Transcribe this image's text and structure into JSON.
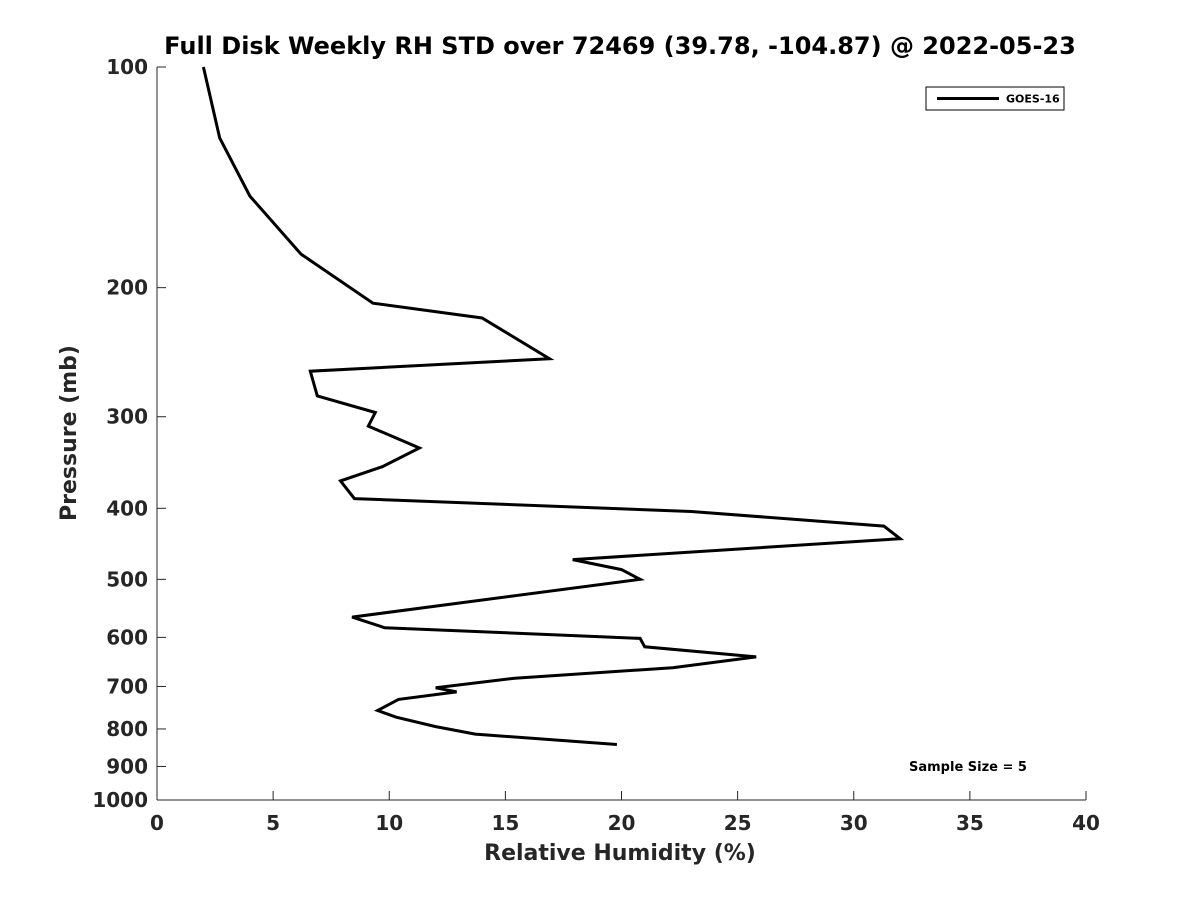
{
  "chart_data": {
    "type": "line",
    "title": "Full Disk Weekly RH STD over 72469 (39.78, -104.87) @ 2022-05-23",
    "xlabel": "Relative Humidity (%)",
    "ylabel": "Pressure (mb)",
    "xlim": [
      0,
      40
    ],
    "ylim": [
      100,
      1000
    ],
    "y_scale": "log",
    "y_reversed": true,
    "x_ticks": [
      "0",
      "5",
      "10",
      "15",
      "20",
      "25",
      "30",
      "35",
      "40"
    ],
    "y_ticks": [
      "100",
      "200",
      "300",
      "400",
      "500",
      "600",
      "700",
      "800",
      "900",
      "1000"
    ],
    "legend": {
      "position": "top-right",
      "entries": [
        "GOES-16"
      ]
    },
    "annotation": "Sample Size = 5",
    "series": [
      {
        "name": "GOES-16",
        "color": "#000000",
        "points": [
          [
            2.0,
            100
          ],
          [
            2.7,
            125
          ],
          [
            4.0,
            150
          ],
          [
            6.2,
            180
          ],
          [
            9.3,
            210
          ],
          [
            14.0,
            220
          ],
          [
            16.9,
            250
          ],
          [
            6.6,
            260
          ],
          [
            6.9,
            281
          ],
          [
            9.4,
            296
          ],
          [
            9.1,
            309
          ],
          [
            11.3,
            331
          ],
          [
            9.7,
            351
          ],
          [
            7.9,
            367
          ],
          [
            8.5,
            388
          ],
          [
            23.0,
            404
          ],
          [
            31.3,
            423
          ],
          [
            32.0,
            440
          ],
          [
            17.9,
            470
          ],
          [
            20.0,
            485
          ],
          [
            20.8,
            500
          ],
          [
            8.4,
            563
          ],
          [
            9.8,
            582
          ],
          [
            20.8,
            602
          ],
          [
            21.0,
            618
          ],
          [
            25.8,
            638
          ],
          [
            22.2,
            660
          ],
          [
            15.4,
            682
          ],
          [
            12.0,
            703
          ],
          [
            12.9,
            712
          ],
          [
            10.4,
            729
          ],
          [
            9.5,
            755
          ],
          [
            10.3,
            771
          ],
          [
            12.0,
            794
          ],
          [
            13.7,
            813
          ],
          [
            19.8,
            840
          ]
        ]
      }
    ]
  }
}
